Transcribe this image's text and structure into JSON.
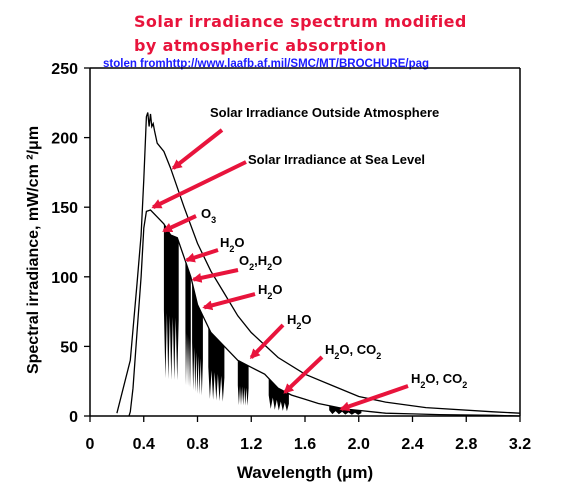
{
  "chart_data": {
    "type": "line",
    "title": "Solar irradiance spectrum modified\nby atmospheric absorption",
    "title_lines": [
      "Solar irradiance spectrum modified",
      "by atmospheric absorption"
    ],
    "source_note": "stolen fromhttp://www.laafb.af.mil/SMC/MT/BROCHURE/pag",
    "xlabel": "Wavelength (μm)",
    "ylabel": "Spectral irradiance, mW/cm ²/μm",
    "xlim": [
      0,
      3.2
    ],
    "ylim": [
      0,
      250
    ],
    "x_ticks": [
      0,
      0.4,
      0.8,
      1.2,
      1.6,
      2.0,
      2.4,
      2.8,
      3.2
    ],
    "x_tick_labels": [
      "0",
      "0.4",
      "0.8",
      "1.2",
      "1.6",
      "2.0",
      "2.4",
      "2.8",
      "3.2"
    ],
    "y_ticks": [
      0,
      50,
      100,
      150,
      200,
      250
    ],
    "y_tick_labels": [
      "0",
      "50",
      "100",
      "150",
      "200",
      "250"
    ],
    "grid": false,
    "legend": "none",
    "colors": {
      "title": "#e8143c",
      "credit": "#1a1aff",
      "arrow": "#e8143c",
      "curve": "#000000"
    },
    "series": [
      {
        "name": "Solar Irradiance Outside Atmosphere",
        "x": [
          0.2,
          0.3,
          0.35,
          0.38,
          0.4,
          0.42,
          0.43,
          0.44,
          0.45,
          0.46,
          0.47,
          0.48,
          0.5,
          0.55,
          0.6,
          0.7,
          0.8,
          0.9,
          1.0,
          1.1,
          1.2,
          1.4,
          1.6,
          1.8,
          2.0,
          2.2,
          2.5,
          3.0,
          3.2
        ],
        "y": [
          2,
          40,
          95,
          130,
          170,
          215,
          218,
          208,
          217,
          208,
          210,
          205,
          196,
          190,
          178,
          150,
          124,
          104,
          88,
          72,
          60,
          42,
          30,
          22,
          14,
          10,
          6,
          3,
          2
        ]
      },
      {
        "name": "Solar Irradiance at Sea Level",
        "x": [
          0.29,
          0.3,
          0.32,
          0.35,
          0.38,
          0.4,
          0.42,
          0.45,
          0.5,
          0.55,
          0.6,
          0.65,
          0.7,
          0.75,
          0.8,
          0.85,
          0.9,
          1.0,
          1.1,
          1.2,
          1.3,
          1.4,
          1.5,
          1.6,
          1.7,
          1.8,
          1.9,
          2.0,
          2.1,
          2.2,
          2.4,
          2.6,
          3.0,
          3.2
        ],
        "y": [
          0,
          3,
          20,
          60,
          100,
          135,
          147,
          148,
          143,
          138,
          130,
          128,
          114,
          100,
          80,
          70,
          60,
          50,
          40,
          35,
          30,
          20,
          15,
          12,
          9,
          7,
          5,
          4,
          3,
          2,
          1.5,
          1,
          0.5,
          0
        ]
      }
    ],
    "absorption_bands": [
      {
        "label": "O3",
        "x_start": 0.55,
        "x_end": 0.66
      },
      {
        "label": "H2O",
        "x_start": 0.71,
        "x_end": 0.75
      },
      {
        "label": "O2,H2O",
        "x_start": 0.76,
        "x_end": 0.84
      },
      {
        "label": "H2O",
        "x_start": 0.88,
        "x_end": 1.0
      },
      {
        "label": "H2O",
        "x_start": 1.1,
        "x_end": 1.18
      },
      {
        "label": "H2O, CO2",
        "x_start": 1.33,
        "x_end": 1.48
      },
      {
        "label": "H2O, CO2",
        "x_start": 1.78,
        "x_end": 2.02
      }
    ],
    "annotations": [
      {
        "text": "Solar Irradiance Outside Atmosphere",
        "x": 0.62,
        "y": 178
      },
      {
        "text": "Solar Irradiance at Sea Level",
        "x": 0.47,
        "y": 150
      },
      {
        "text": "O₃",
        "parts": [
          {
            "t": "O"
          },
          {
            "t": "3",
            "sub": true
          }
        ],
        "x": 0.55,
        "y": 133
      },
      {
        "text": "H₂O",
        "parts": [
          {
            "t": "H"
          },
          {
            "t": "2",
            "sub": true
          },
          {
            "t": "O"
          }
        ],
        "x": 0.72,
        "y": 112
      },
      {
        "text": "O₂,H₂O",
        "parts": [
          {
            "t": "O"
          },
          {
            "t": "2",
            "sub": true
          },
          {
            "t": ",H"
          },
          {
            "t": "2",
            "sub": true
          },
          {
            "t": "O"
          }
        ],
        "x": 0.77,
        "y": 98
      },
      {
        "text": "H₂O",
        "parts": [
          {
            "t": "H"
          },
          {
            "t": "2",
            "sub": true
          },
          {
            "t": "O"
          }
        ],
        "x": 0.85,
        "y": 78
      },
      {
        "text": "H₂O",
        "parts": [
          {
            "t": "H"
          },
          {
            "t": "2",
            "sub": true
          },
          {
            "t": "O"
          }
        ],
        "x": 1.2,
        "y": 42
      },
      {
        "text": "H₂O, CO₂",
        "parts": [
          {
            "t": "H"
          },
          {
            "t": "2",
            "sub": true
          },
          {
            "t": "O, CO"
          },
          {
            "t": "2",
            "sub": true
          }
        ],
        "x": 1.45,
        "y": 17
      },
      {
        "text": "H₂O, CO₂",
        "parts": [
          {
            "t": "H"
          },
          {
            "t": "2",
            "sub": true
          },
          {
            "t": "O, CO"
          },
          {
            "t": "2",
            "sub": true
          }
        ],
        "x": 1.87,
        "y": 5
      }
    ]
  }
}
